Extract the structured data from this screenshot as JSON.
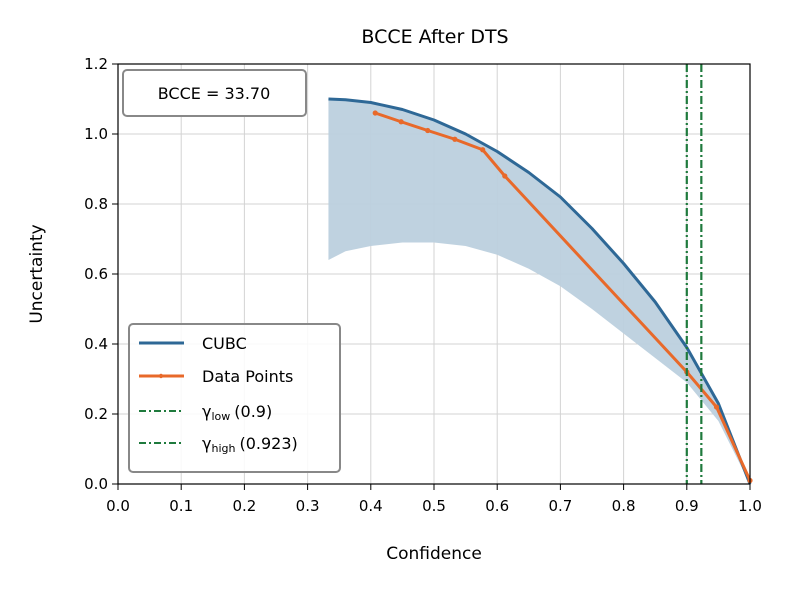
{
  "chart_data": {
    "type": "line",
    "title": "BCCE After DTS",
    "xlabel": "Confidence",
    "ylabel": "Uncertainty",
    "xlim": [
      0.0,
      1.0
    ],
    "ylim": [
      0.0,
      1.2
    ],
    "xticks": [
      "0.0",
      "0.1",
      "0.2",
      "0.3",
      "0.4",
      "0.5",
      "0.6",
      "0.7",
      "0.8",
      "0.9",
      "1.0"
    ],
    "xtick_values": [
      0.0,
      0.1,
      0.2,
      0.3,
      0.4,
      0.5,
      0.6,
      0.7,
      0.8,
      0.9,
      1.0
    ],
    "yticks": [
      "0.0",
      "0.2",
      "0.4",
      "0.6",
      "0.8",
      "1.0",
      "1.2"
    ],
    "ytick_values": [
      0.0,
      0.2,
      0.4,
      0.6,
      0.8,
      1.0,
      1.2
    ],
    "grid": true,
    "annotation": "BCCE = 33.70",
    "colors": {
      "cubc": "#2e6896",
      "band": "#bcd0de",
      "data": "#e8692a",
      "gamma": "#1f7a3d"
    },
    "cubc": {
      "name": "CUBC",
      "x": [
        0.333,
        0.36,
        0.4,
        0.45,
        0.5,
        0.55,
        0.6,
        0.65,
        0.7,
        0.75,
        0.8,
        0.85,
        0.9,
        0.95,
        1.0
      ],
      "y": [
        1.1,
        1.098,
        1.09,
        1.07,
        1.04,
        1.0,
        0.95,
        0.89,
        0.82,
        0.73,
        0.63,
        0.52,
        0.39,
        0.23,
        0.0
      ]
    },
    "band_lower": {
      "x": [
        0.333,
        0.36,
        0.4,
        0.45,
        0.5,
        0.55,
        0.6,
        0.65,
        0.7,
        0.75,
        0.8,
        0.85,
        0.9,
        0.95,
        1.0
      ],
      "y": [
        0.64,
        0.665,
        0.68,
        0.69,
        0.69,
        0.68,
        0.655,
        0.615,
        0.565,
        0.5,
        0.43,
        0.36,
        0.29,
        0.18,
        0.0
      ]
    },
    "data_points": {
      "name": "Data Points",
      "x": [
        0.407,
        0.448,
        0.49,
        0.533,
        0.577,
        0.612,
        0.9,
        0.947,
        1.0
      ],
      "y": [
        1.06,
        1.035,
        1.01,
        0.985,
        0.955,
        0.88,
        0.32,
        0.22,
        0.01
      ]
    },
    "gamma_lines": [
      {
        "name": "γ",
        "sub": "low",
        "value_text": "(0.9)",
        "x": 0.9
      },
      {
        "name": "γ",
        "sub": "high",
        "value_text": "(0.923)",
        "x": 0.923
      }
    ],
    "legend": [
      "CUBC",
      "Data Points",
      "γlow (0.9)",
      "γhigh (0.923)"
    ],
    "legend_position": "lower-left"
  }
}
